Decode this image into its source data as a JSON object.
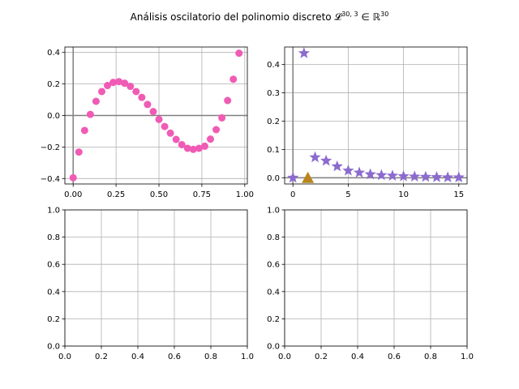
{
  "figure": {
    "title": "Análisis oscilatorio del polinomio discreto 𝓛<sup>30,3</sup> ∈ ℝ<sup>30</sup>",
    "title_plain": "Análisis oscilatorio del polinomio discreto 𝓛",
    "title_sup1": "30, 3",
    "title_mid": " ∈ ℝ",
    "title_sup2": "30"
  },
  "chart_data": [
    {
      "panel": "top-left",
      "type": "scatter",
      "marker": "circle",
      "color": "#f05bb5",
      "x": [
        0.0,
        0.0333,
        0.0667,
        0.1,
        0.1333,
        0.1667,
        0.2,
        0.2333,
        0.2667,
        0.3,
        0.3333,
        0.3667,
        0.4,
        0.4333,
        0.4667,
        0.5,
        0.5333,
        0.5667,
        0.6,
        0.6333,
        0.6667,
        0.7,
        0.7333,
        0.7667,
        0.8,
        0.8333,
        0.8667,
        0.9,
        0.9333,
        0.9667
      ],
      "y": [
        -0.395,
        -0.232,
        -0.095,
        0.007,
        0.09,
        0.152,
        0.19,
        0.21,
        0.215,
        0.205,
        0.185,
        0.152,
        0.115,
        0.07,
        0.025,
        -0.025,
        -0.07,
        -0.112,
        -0.152,
        -0.185,
        -0.208,
        -0.215,
        -0.208,
        -0.195,
        -0.15,
        -0.09,
        -0.015,
        0.095,
        0.23,
        0.395
      ],
      "xlim": [
        -0.0483,
        1.015
      ],
      "ylim": [
        -0.4345,
        0.4345
      ],
      "xticks": [
        0.0,
        0.25,
        0.5,
        0.75,
        1.0
      ],
      "xtick_labels": [
        "0.00",
        "0.25",
        "0.50",
        "0.75",
        "1.00"
      ],
      "yticks": [
        -0.4,
        -0.2,
        0.0,
        0.2,
        0.4
      ],
      "ytick_labels": [
        "−0.4",
        "−0.2",
        "0.0",
        "0.2",
        "0.4"
      ],
      "grid": true,
      "axhline": 0,
      "axvline": 0
    },
    {
      "panel": "top-right",
      "type": "scatter",
      "series": [
        {
          "marker": "star",
          "color": "#8c6bcf",
          "x": [
            0,
            1,
            2,
            3,
            4,
            5,
            6,
            7,
            8,
            9,
            10,
            11,
            12,
            13,
            14,
            15
          ],
          "y": [
            0.0,
            0.44,
            0.072,
            0.06,
            0.04,
            0.025,
            0.018,
            0.012,
            0.009,
            0.007,
            0.005,
            0.004,
            0.003,
            0.002,
            0.001,
            0.001
          ]
        },
        {
          "marker": "triangle",
          "color": "#b8861b",
          "x": [
            1.35
          ],
          "y": [
            0.0
          ]
        }
      ],
      "xlim": [
        -0.75,
        15.75
      ],
      "ylim": [
        -0.022,
        0.462
      ],
      "xticks": [
        0,
        5,
        10,
        15
      ],
      "xtick_labels": [
        "0",
        "5",
        "10",
        "15"
      ],
      "yticks": [
        0.0,
        0.1,
        0.2,
        0.3,
        0.4
      ],
      "ytick_labels": [
        "0.0",
        "0.1",
        "0.2",
        "0.3",
        "0.4"
      ],
      "grid": true,
      "axhline": 0,
      "axvline": 0
    },
    {
      "panel": "bottom-left",
      "type": "scatter",
      "empty": true,
      "xlim": [
        0,
        1
      ],
      "ylim": [
        0,
        1
      ],
      "xticks": [
        0.0,
        0.2,
        0.4,
        0.6,
        0.8,
        1.0
      ],
      "xtick_labels": [
        "0.0",
        "0.2",
        "0.4",
        "0.6",
        "0.8",
        "1.0"
      ],
      "yticks": [
        0.0,
        0.2,
        0.4,
        0.6,
        0.8,
        1.0
      ],
      "ytick_labels": [
        "0.0",
        "0.2",
        "0.4",
        "0.6",
        "0.8",
        "1.0"
      ],
      "grid": true
    },
    {
      "panel": "bottom-right",
      "type": "scatter",
      "empty": true,
      "xlim": [
        0,
        1
      ],
      "ylim": [
        0,
        1
      ],
      "xticks": [
        0.0,
        0.2,
        0.4,
        0.6,
        0.8,
        1.0
      ],
      "xtick_labels": [
        "0.0",
        "0.2",
        "0.4",
        "0.6",
        "0.8",
        "1.0"
      ],
      "yticks": [
        0.0,
        0.2,
        0.4,
        0.6,
        0.8,
        1.0
      ],
      "ytick_labels": [
        "0.0",
        "0.2",
        "0.4",
        "0.6",
        "0.8",
        "1.0"
      ],
      "grid": true
    }
  ]
}
